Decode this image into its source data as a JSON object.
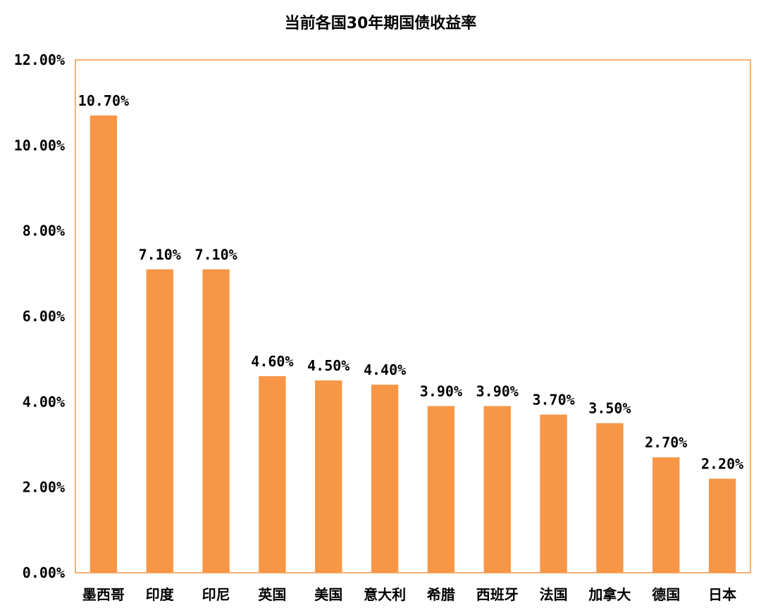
{
  "chart_data": {
    "type": "bar",
    "title": "当前各国30年期国债收益率",
    "xlabel": "",
    "ylabel": "",
    "categories": [
      "墨西哥",
      "印度",
      "印尼",
      "英国",
      "美国",
      "意大利",
      "希腊",
      "西班牙",
      "法国",
      "加拿大",
      "德国",
      "日本"
    ],
    "values": [
      10.7,
      7.1,
      7.1,
      4.6,
      4.5,
      4.4,
      3.9,
      3.9,
      3.7,
      3.5,
      2.7,
      2.2
    ],
    "data_labels": [
      "10.70%",
      "7.10%",
      "7.10%",
      "4.60%",
      "4.50%",
      "4.40%",
      "3.90%",
      "3.90%",
      "3.70%",
      "3.50%",
      "2.70%",
      "2.20%"
    ],
    "yticks": [
      0,
      2,
      4,
      6,
      8,
      10,
      12
    ],
    "ytick_labels": [
      "0.00%",
      "2.00%",
      "4.00%",
      "6.00%",
      "8.00%",
      "10.00%",
      "12.00%"
    ],
    "ylim": [
      0,
      12
    ],
    "grid": false,
    "legend": "none",
    "colors": {
      "bar": "#F79646",
      "frame": "#F79646",
      "text": "#000000"
    }
  }
}
